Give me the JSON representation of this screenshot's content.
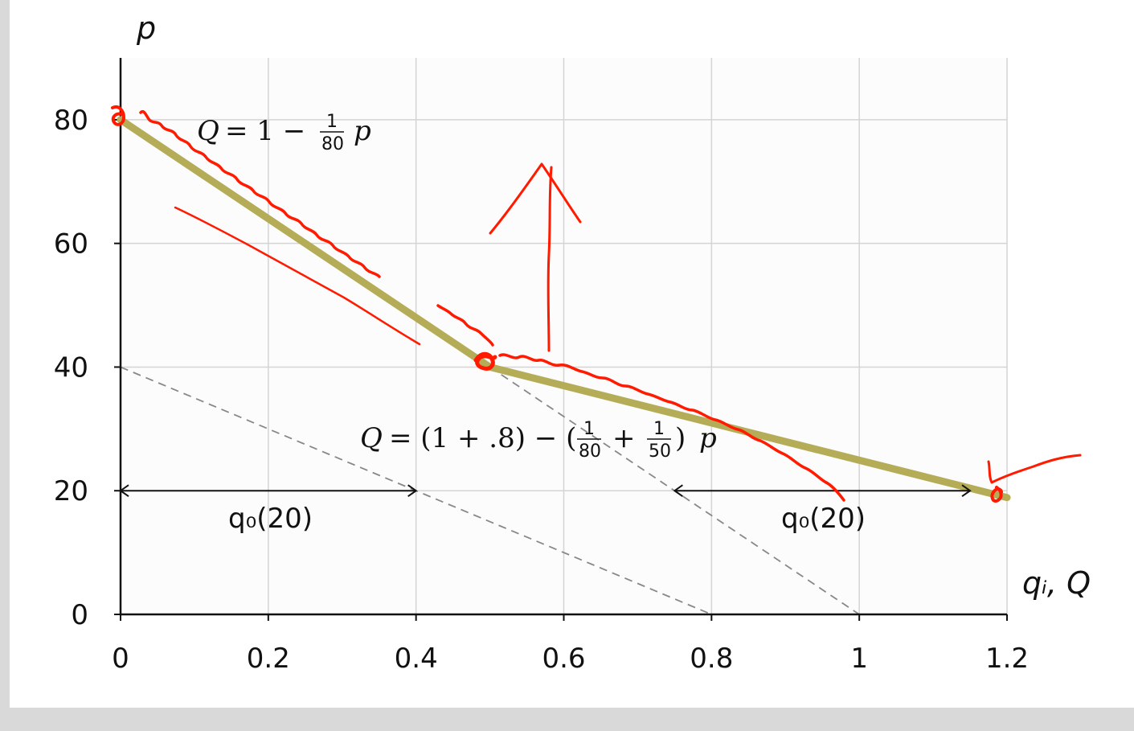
{
  "chart_data": {
    "type": "line",
    "xlabel": "q_i, Q",
    "ylabel": "p",
    "xlim": [
      0,
      1.2
    ],
    "ylim": [
      0,
      90
    ],
    "x_ticks": [
      "0",
      "0.2",
      "0.4",
      "0.6",
      "0.8",
      "1",
      "1.2"
    ],
    "y_ticks": [
      "0",
      "20",
      "40",
      "60",
      "80"
    ],
    "grid": true,
    "series": [
      {
        "style": "solid-thick",
        "x": [
          0,
          0.5,
          1.2
        ],
        "y": [
          80,
          40,
          18.9
        ]
      },
      {
        "style": "dashed",
        "x": [
          0,
          0.8
        ],
        "y": [
          40,
          0
        ]
      },
      {
        "style": "dashed",
        "x": [
          0.5,
          1.0
        ],
        "y": [
          40,
          0
        ]
      }
    ],
    "annotations": {
      "demand_one": {
        "lhs": "Q",
        "eq": "= 1 −",
        "frac_num": "1",
        "frac_den": "80",
        "var": "p"
      },
      "demand_total": {
        "lhs": "Q",
        "eq": "= (1 + .8) − (",
        "frac1_num": "1",
        "frac1_den": "80",
        "plus": "+",
        "frac2_num": "1",
        "frac2_den": "50",
        "close": ")",
        "var": "p"
      },
      "q0_left": "q₀(20)",
      "q0_right": "q₀(20)"
    },
    "arrows": [
      {
        "y": 20,
        "x_from": 0,
        "x_to": 0.4
      },
      {
        "y": 20,
        "x_from": 0.75,
        "x_to": 1.15
      }
    ]
  },
  "colors": {
    "grid": "#d4d4d4",
    "axis": "#111111",
    "curve": "#b5ac58",
    "curve_core": "#c9c06b",
    "dashed": "#888888",
    "ink": "#ff1a00"
  }
}
